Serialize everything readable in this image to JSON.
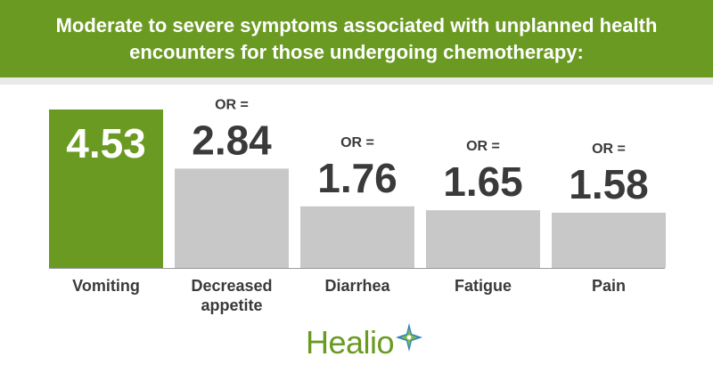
{
  "header": {
    "title": "Moderate to severe symptoms associated with unplanned health encounters for those undergoing chemotherapy:"
  },
  "colors": {
    "header_bg": "#6a9a22",
    "highlight_bar": "#6a9a22",
    "default_bar": "#c8c8c8",
    "text_dark": "#3a3a3a"
  },
  "chart_data": {
    "type": "bar",
    "categories": [
      "Vomiting",
      "Decreased appetite",
      "Diarrhea",
      "Fatigue",
      "Pain"
    ],
    "category_lines": [
      [
        "Vomiting"
      ],
      [
        "Decreased",
        "appetite"
      ],
      [
        "Diarrhea"
      ],
      [
        "Fatigue"
      ],
      [
        "Pain"
      ]
    ],
    "values": [
      4.53,
      2.84,
      1.76,
      1.65,
      1.58
    ],
    "value_labels": [
      "4.53",
      "2.84",
      "1.76",
      "1.65",
      "1.58"
    ],
    "prefix_label": "OR =",
    "highlight_index": 0,
    "ylim": [
      0,
      4.53
    ],
    "grid": false
  },
  "logo": {
    "text": "Healio",
    "icon": "healio-star-icon"
  }
}
